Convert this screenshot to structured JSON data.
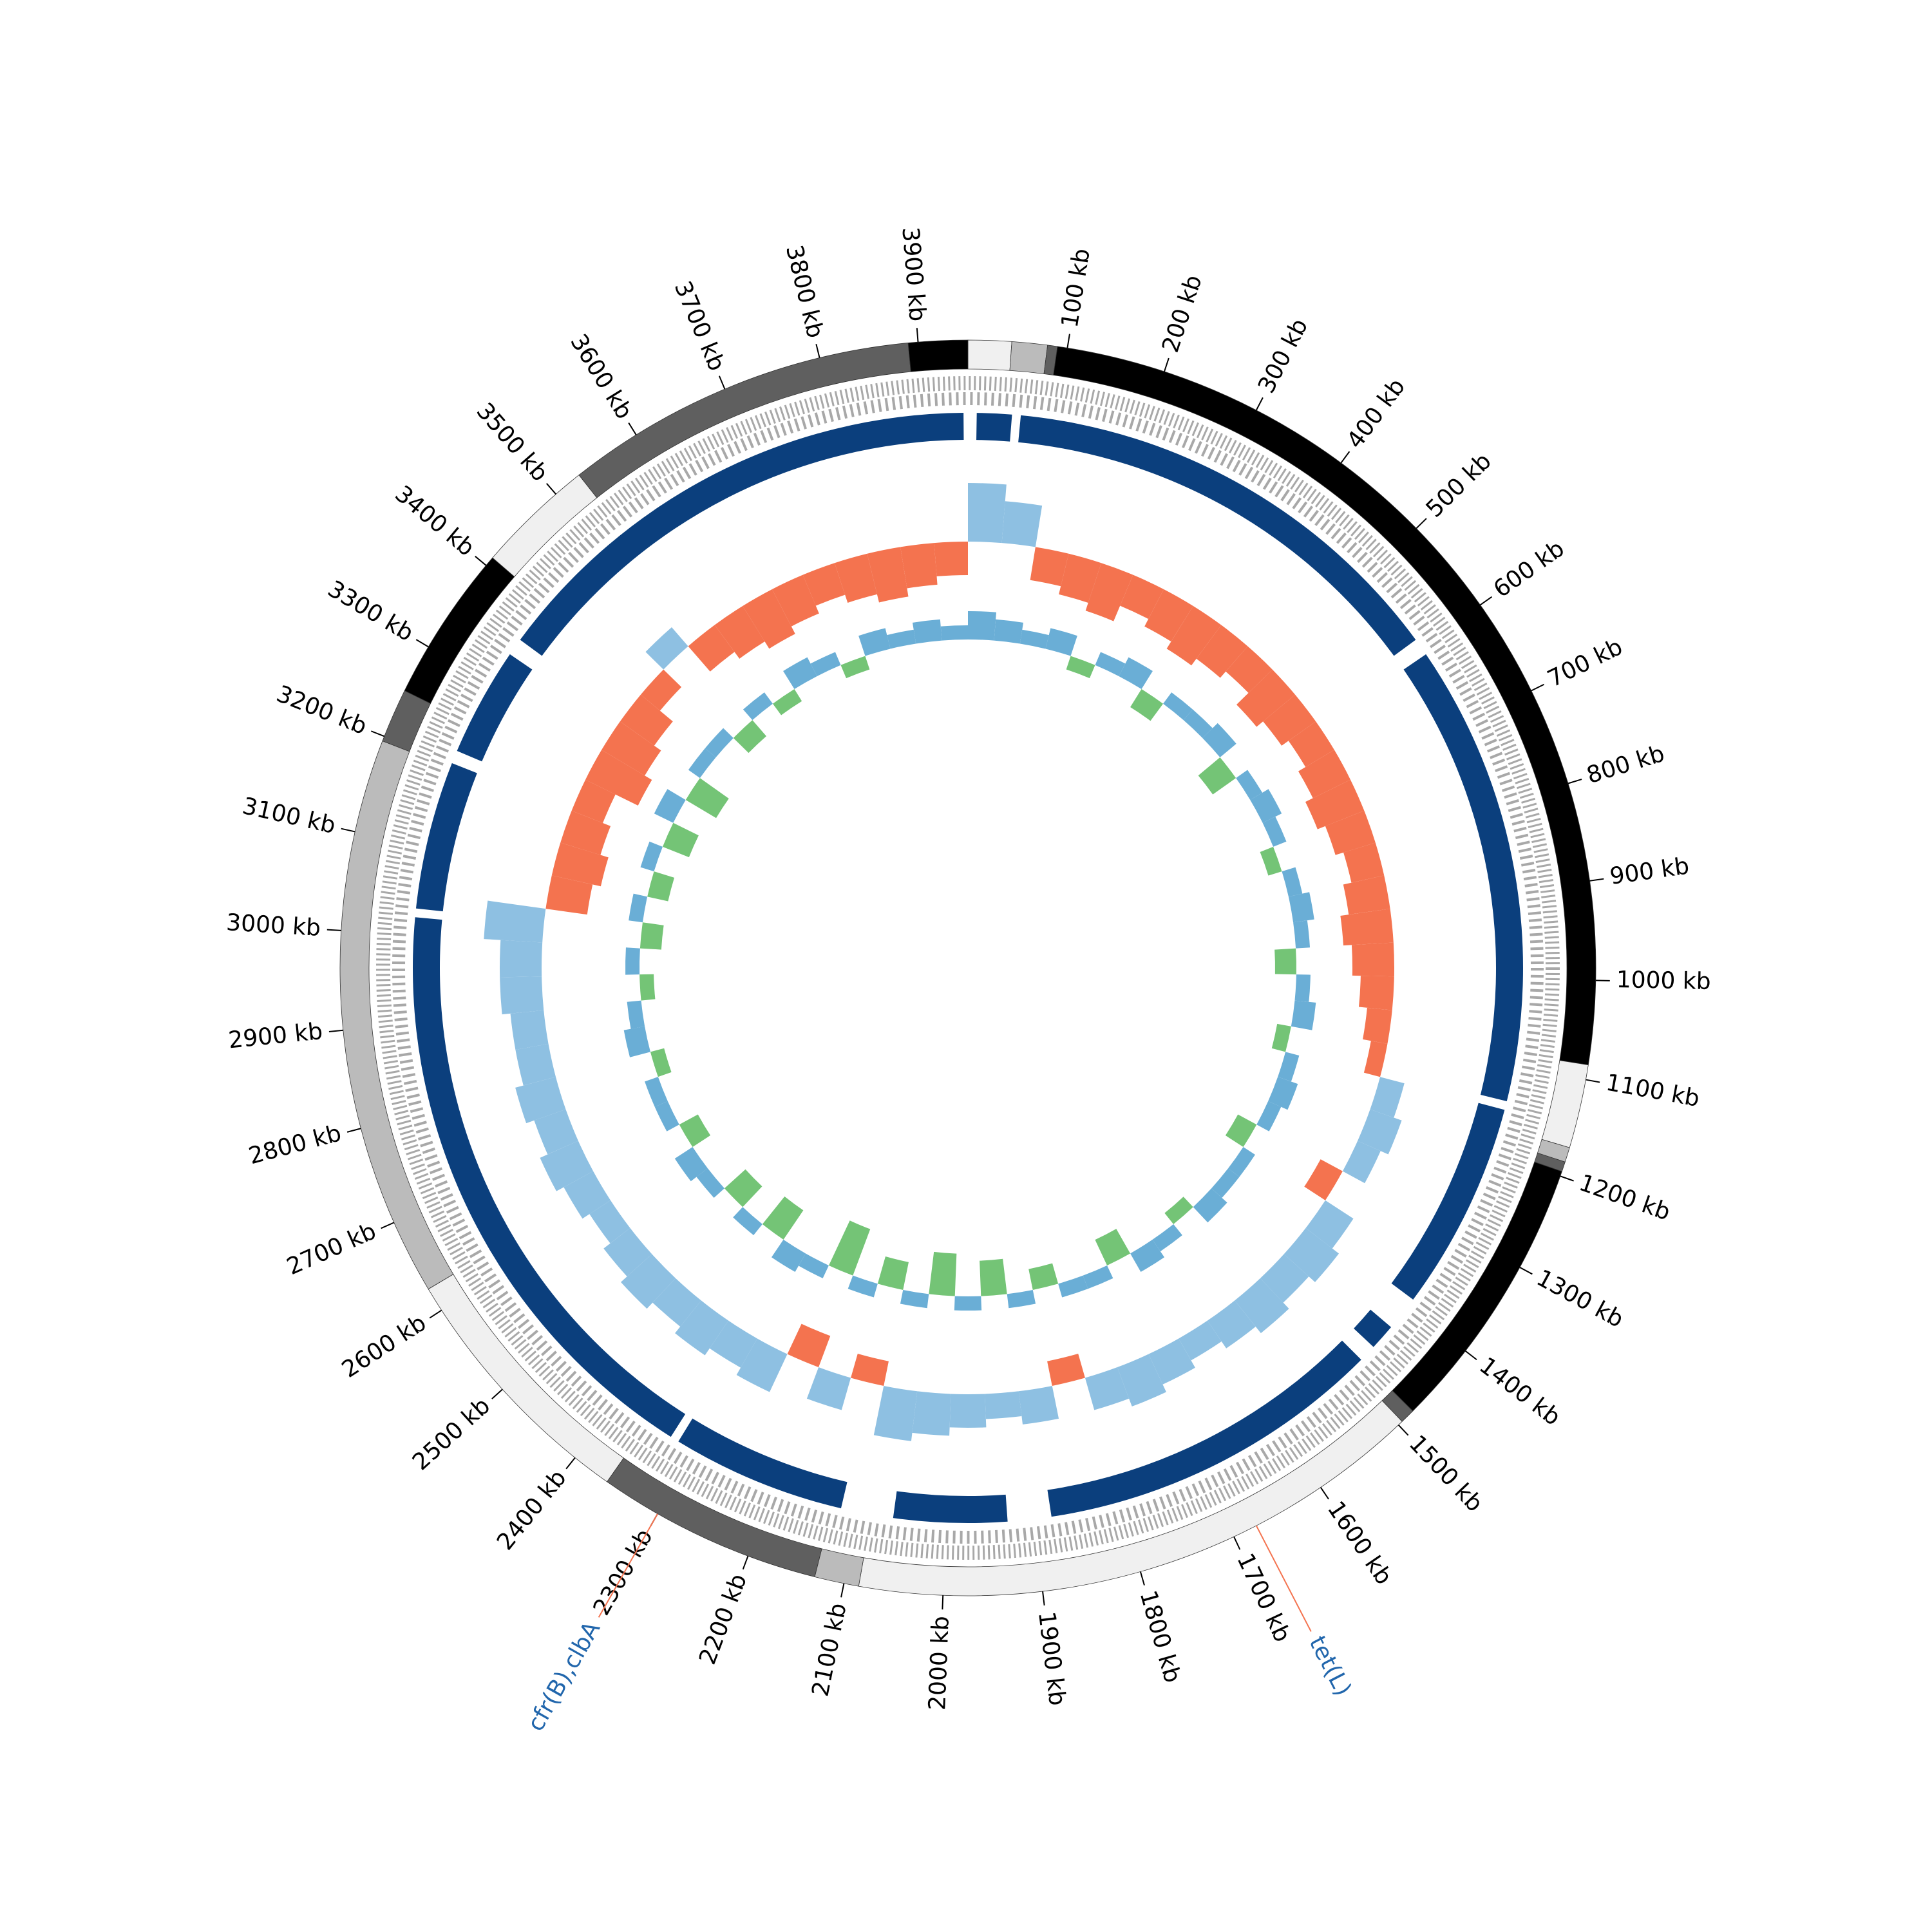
{
  "chart_data": {
    "type": "circular-genome",
    "xlim": [
      0,
      3950
    ],
    "xticks": [
      {
        "value": 100,
        "label": "100 kb"
      },
      {
        "value": 200,
        "label": "200 kb"
      },
      {
        "value": 300,
        "label": "300 kb"
      },
      {
        "value": 400,
        "label": "400 kb"
      },
      {
        "value": 500,
        "label": "500 kb"
      },
      {
        "value": 600,
        "label": "600 kb"
      },
      {
        "value": 700,
        "label": "700 kb"
      },
      {
        "value": 800,
        "label": "800 kb"
      },
      {
        "value": 900,
        "label": "900 kb"
      },
      {
        "value": 1000,
        "label": "1000 kb"
      },
      {
        "value": 1100,
        "label": "1100 kb"
      },
      {
        "value": 1200,
        "label": "1200 kb"
      },
      {
        "value": 1300,
        "label": "1300 kb"
      },
      {
        "value": 1400,
        "label": "1400 kb"
      },
      {
        "value": 1500,
        "label": "1500 kb"
      },
      {
        "value": 1600,
        "label": "1600 kb"
      },
      {
        "value": 1700,
        "label": "1700 kb"
      },
      {
        "value": 1800,
        "label": "1800 kb"
      },
      {
        "value": 1900,
        "label": "1900 kb"
      },
      {
        "value": 2000,
        "label": "2000 kb"
      },
      {
        "value": 2100,
        "label": "2100 kb"
      },
      {
        "value": 2200,
        "label": "2200 kb"
      },
      {
        "value": 2300,
        "label": "2300 kb"
      },
      {
        "value": 2400,
        "label": "2400 kb"
      },
      {
        "value": 2500,
        "label": "2500 kb"
      },
      {
        "value": 2600,
        "label": "2600 kb"
      },
      {
        "value": 2700,
        "label": "2700 kb"
      },
      {
        "value": 2800,
        "label": "2800 kb"
      },
      {
        "value": 2900,
        "label": "2900 kb"
      },
      {
        "value": 3000,
        "label": "3000 kb"
      },
      {
        "value": 3100,
        "label": "3100 kb"
      },
      {
        "value": 3200,
        "label": "3200 kb"
      },
      {
        "value": 3300,
        "label": "3300 kb"
      },
      {
        "value": 3400,
        "label": "3400 kb"
      },
      {
        "value": 3500,
        "label": "3500 kb"
      },
      {
        "value": 3600,
        "label": "3600 kb"
      },
      {
        "value": 3700,
        "label": "3700 kb"
      },
      {
        "value": 3800,
        "label": "3800 kb"
      },
      {
        "value": 3900,
        "label": "3900 kb"
      }
    ],
    "contigs": [
      {
        "start": 0,
        "end": 44,
        "color": "#f0f0f0"
      },
      {
        "start": 44,
        "end": 80,
        "color": "#bbbbbb"
      },
      {
        "start": 80,
        "end": 90,
        "color": "#5f5f5f"
      },
      {
        "start": 90,
        "end": 1085,
        "color": "#000000"
      },
      {
        "start": 1085,
        "end": 1170,
        "color": "#f0f0f0"
      },
      {
        "start": 1170,
        "end": 1185,
        "color": "#bbbbbb"
      },
      {
        "start": 1185,
        "end": 1195,
        "color": "#5f5f5f"
      },
      {
        "start": 1195,
        "end": 1480,
        "color": "#000000"
      },
      {
        "start": 1480,
        "end": 1495,
        "color": "#5f5f5f"
      },
      {
        "start": 1495,
        "end": 2085,
        "color": "#f0f0f0"
      },
      {
        "start": 2085,
        "end": 2130,
        "color": "#bbbbbb"
      },
      {
        "start": 2130,
        "end": 2360,
        "color": "#5f5f5f"
      },
      {
        "start": 2360,
        "end": 2625,
        "color": "#f0f0f0"
      },
      {
        "start": 2625,
        "end": 3195,
        "color": "#bbbbbb"
      },
      {
        "start": 3195,
        "end": 3250,
        "color": "#5f5f5f"
      },
      {
        "start": 3250,
        "end": 3410,
        "color": "#000000"
      },
      {
        "start": 3410,
        "end": 3530,
        "color": "#f0f0f0"
      },
      {
        "start": 3530,
        "end": 3890,
        "color": "#5f5f5f"
      },
      {
        "start": 3890,
        "end": 3950,
        "color": "#000000"
      }
    ],
    "blast_color": "#0b3f7d",
    "blast_hits": [
      {
        "start": 10,
        "end": 50
      },
      {
        "start": 60,
        "end": 590
      },
      {
        "start": 610,
        "end": 1140
      },
      {
        "start": 1150,
        "end": 1390
      },
      {
        "start": 1430,
        "end": 1460
      },
      {
        "start": 1480,
        "end": 1880
      },
      {
        "start": 1930,
        "end": 2060
      },
      {
        "start": 2120,
        "end": 2320
      },
      {
        "start": 2330,
        "end": 3020
      },
      {
        "start": 3030,
        "end": 3200
      },
      {
        "start": 3215,
        "end": 3340
      },
      {
        "start": 3360,
        "end": 3945
      }
    ],
    "x": [
      0,
      50,
      100,
      150,
      200,
      250,
      300,
      350,
      400,
      450,
      500,
      550,
      600,
      650,
      700,
      750,
      800,
      850,
      900,
      950,
      1000,
      1050,
      1100,
      1150,
      1200,
      1250,
      1300,
      1350,
      1400,
      1450,
      1500,
      1550,
      1600,
      1650,
      1700,
      1750,
      1800,
      1850,
      1900,
      1950,
      2000,
      2050,
      2100,
      2150,
      2200,
      2250,
      2300,
      2350,
      2400,
      2450,
      2500,
      2550,
      2600,
      2650,
      2700,
      2750,
      2800,
      2850,
      2900,
      2950,
      3000,
      3050,
      3100,
      3150,
      3200,
      3250,
      3300,
      3350,
      3400,
      3450,
      3500,
      3550,
      3600,
      3650,
      3700,
      3750,
      3800,
      3850,
      3900
    ],
    "gc_content": {
      "ylim": [
        -10,
        10
      ],
      "positive_color": "#8ec0e2",
      "negative_color": "#f4734f",
      "values": [
        7,
        5,
        -4,
        -5,
        -6,
        -4,
        -5,
        -6,
        -5,
        -4,
        -6,
        -5,
        -4,
        -5,
        -6,
        -5,
        -4,
        -5,
        -6,
        -5,
        -4,
        -3,
        -2,
        3,
        4,
        3,
        -3,
        4,
        5,
        4,
        5,
        4,
        3,
        4,
        5,
        4,
        -3,
        4,
        3,
        4,
        5,
        6,
        -3,
        4,
        -4,
        5,
        4,
        5,
        4,
        5,
        4,
        3,
        4,
        5,
        4,
        5,
        4,
        4,
        5,
        5,
        7,
        -5,
        -6,
        -5,
        -4,
        -7,
        -6,
        -5,
        -3,
        3,
        -4,
        -5,
        -6,
        -5,
        -4,
        -5,
        -6,
        -5,
        -4
      ]
    },
    "gc_skew": {
      "ylim": [
        -0.1,
        0.1
      ],
      "positive_color": "#6aaed6",
      "negative_color": "#74c476",
      "values": [
        0.04,
        0.03,
        0.02,
        0.03,
        -0.02,
        0.02,
        0.03,
        -0.03,
        0.02,
        0.02,
        0.03,
        -0.04,
        0.02,
        0.03,
        0.02,
        -0.02,
        0.02,
        0.03,
        0.02,
        -0.03,
        0.02,
        0.03,
        -0.02,
        0.02,
        0.03,
        0.02,
        -0.03,
        0.02,
        0.02,
        0.03,
        -0.02,
        0.02,
        0.03,
        -0.04,
        0.02,
        0.02,
        -0.03,
        0.02,
        -0.05,
        0.02,
        -0.06,
        0.02,
        -0.04,
        0.02,
        -0.07,
        0.02,
        0.03,
        -0.05,
        0.02,
        -0.04,
        0.02,
        0.03,
        -0.03,
        0.02,
        0.02,
        -0.02,
        0.03,
        0.02,
        -0.02,
        0.02,
        -0.03,
        0.02,
        -0.03,
        0.02,
        -0.04,
        0.03,
        -0.05,
        0.02,
        0.02,
        -0.03,
        0.02,
        -0.02,
        0.03,
        0.02,
        -0.02,
        0.03,
        0.02,
        0.03,
        0.02
      ]
    },
    "annotations": [
      {
        "label": "tet(L)",
        "position": 1675,
        "line_color": "#f4734f",
        "text_color": "#2166ac"
      },
      {
        "label": "cfr(B),clbA",
        "position": 2300,
        "line_color": "#f4734f",
        "text_color": "#2166ac"
      }
    ]
  }
}
